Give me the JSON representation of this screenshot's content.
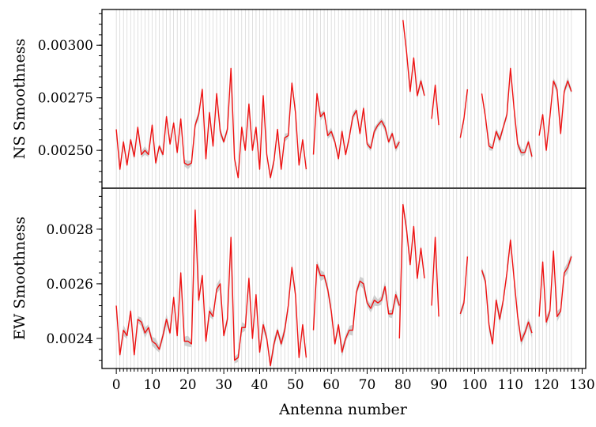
{
  "chart_data": {
    "type": "line",
    "xlabel": "Antenna number",
    "xlim": [
      -4,
      131
    ],
    "xticks": [
      0,
      10,
      20,
      30,
      40,
      50,
      60,
      70,
      80,
      90,
      100,
      110,
      120,
      130
    ],
    "xtick_labels": [
      "0",
      "10",
      "20",
      "30",
      "40",
      "50",
      "60",
      "70",
      "80",
      "90",
      "100",
      "110",
      "120",
      "130"
    ],
    "grid": "vertical lines at every antenna",
    "panels": [
      {
        "ylabel": "NS Smoothness",
        "ylim": [
          0.00232,
          0.00317
        ],
        "yticks": [
          0.0025,
          0.00275,
          0.003
        ],
        "ytick_labels": [
          "0.00250",
          "0.00275",
          "0.00300"
        ],
        "series": [
          {
            "color": "#ee1111",
            "band_color": "#c8c8c8",
            "segments": [
              {
                "x0": 0,
                "values": [
                  0.0026,
                  0.00241,
                  0.00254,
                  0.00243,
                  0.00255,
                  0.00247,
                  0.00261,
                  0.00248,
                  0.0025,
                  0.00248,
                  0.00262,
                  0.00244,
                  0.00252,
                  0.00248,
                  0.00266,
                  0.00253,
                  0.00263,
                  0.00249,
                  0.00265,
                  0.00244,
                  0.00243,
                  0.00244,
                  0.00262,
                  0.00267,
                  0.00279,
                  0.00246,
                  0.00268,
                  0.00252,
                  0.00277,
                  0.00259,
                  0.00254,
                  0.0026,
                  0.00289,
                  0.00246,
                  0.00237,
                  0.00261,
                  0.0025,
                  0.00272,
                  0.0025,
                  0.00261,
                  0.00241,
                  0.00276,
                  0.00248,
                  0.00237,
                  0.00245,
                  0.0026,
                  0.00241,
                  0.00256,
                  0.00257,
                  0.00282,
                  0.00268,
                  0.00243,
                  0.00255,
                  0.00241
                ]
              },
              {
                "x0": 55,
                "values": [
                  0.00248,
                  0.00277,
                  0.00266,
                  0.00268,
                  0.00257,
                  0.00259,
                  0.00254,
                  0.00246,
                  0.00259,
                  0.00248,
                  0.00256,
                  0.00266,
                  0.00269,
                  0.00258,
                  0.0027,
                  0.00253,
                  0.00251,
                  0.00259,
                  0.00262,
                  0.00264,
                  0.00261,
                  0.00254,
                  0.00258,
                  0.00251,
                  0.00254
                ]
              },
              {
                "x0": 80,
                "values": [
                  0.00312,
                  0.00297,
                  0.00278,
                  0.00294,
                  0.00276,
                  0.00283,
                  0.00276
                ]
              },
              {
                "x0": 88,
                "values": [
                  0.00265,
                  0.00281,
                  0.00262
                ]
              },
              {
                "x0": 96,
                "values": [
                  0.00256,
                  0.00265,
                  0.00279
                ]
              },
              {
                "x0": 102,
                "values": [
                  0.00277,
                  0.00266,
                  0.00252,
                  0.00251,
                  0.00259,
                  0.00255,
                  0.00261,
                  0.00267,
                  0.00289,
                  0.0027,
                  0.00253,
                  0.00249,
                  0.00249,
                  0.00254,
                  0.00247
                ]
              },
              {
                "x0": 118,
                "values": [
                  0.00257,
                  0.00267,
                  0.0025,
                  0.00266,
                  0.00283,
                  0.00279,
                  0.00258,
                  0.00278,
                  0.00283,
                  0.00278
                ]
              }
            ]
          }
        ]
      },
      {
        "ylabel": "EW Smoothness",
        "ylim": [
          0.00229,
          0.00295
        ],
        "yticks": [
          0.0024,
          0.0026,
          0.0028
        ],
        "ytick_labels": [
          "0.0024",
          "0.0026",
          "0.0028"
        ],
        "series": [
          {
            "color": "#ee1111",
            "band_color": "#c8c8c8",
            "segments": [
              {
                "x0": 0,
                "values": [
                  0.00252,
                  0.00234,
                  0.00243,
                  0.00241,
                  0.0025,
                  0.00234,
                  0.00247,
                  0.00246,
                  0.00242,
                  0.00244,
                  0.00239,
                  0.00238,
                  0.00236,
                  0.00241,
                  0.00247,
                  0.00242,
                  0.00255,
                  0.00241,
                  0.00264,
                  0.00239,
                  0.00239,
                  0.00238,
                  0.00287,
                  0.00254,
                  0.00263,
                  0.00239,
                  0.0025,
                  0.00248,
                  0.00258,
                  0.0026,
                  0.00241,
                  0.00247,
                  0.00277,
                  0.00232,
                  0.00233,
                  0.00244,
                  0.00244,
                  0.00262,
                  0.0024,
                  0.00256,
                  0.00235,
                  0.00245,
                  0.0024,
                  0.0023,
                  0.00238,
                  0.00243,
                  0.00238,
                  0.00243,
                  0.00252,
                  0.00266,
                  0.00256,
                  0.00233,
                  0.00245,
                  0.00233
                ]
              },
              {
                "x0": 55,
                "values": [
                  0.00243,
                  0.00267,
                  0.00263,
                  0.00263,
                  0.00258,
                  0.0025,
                  0.00238,
                  0.00245,
                  0.00235,
                  0.0024,
                  0.00243,
                  0.00243,
                  0.00257,
                  0.00261,
                  0.0026,
                  0.00253,
                  0.00251,
                  0.00254,
                  0.00253,
                  0.00254,
                  0.00259,
                  0.00249,
                  0.00249,
                  0.00256,
                  0.00252
                ]
              },
              {
                "x0": 79,
                "values": [
                  0.0024,
                  0.00289,
                  0.0028,
                  0.00267,
                  0.00281,
                  0.00262,
                  0.00273,
                  0.00262
                ]
              },
              {
                "x0": 88,
                "values": [
                  0.00252,
                  0.00277,
                  0.00248
                ]
              },
              {
                "x0": 96,
                "values": [
                  0.00249,
                  0.00253,
                  0.0027
                ]
              },
              {
                "x0": 102,
                "values": [
                  0.00265,
                  0.00261,
                  0.00245,
                  0.00238,
                  0.00254,
                  0.00247,
                  0.00254,
                  0.00264,
                  0.00276,
                  0.00262,
                  0.00248,
                  0.00239,
                  0.00242,
                  0.00246,
                  0.00242
                ]
              },
              {
                "x0": 118,
                "values": [
                  0.00248,
                  0.00268,
                  0.00246,
                  0.0025,
                  0.00272,
                  0.00248,
                  0.0025,
                  0.00264,
                  0.00266,
                  0.0027
                ]
              }
            ]
          }
        ]
      }
    ]
  }
}
